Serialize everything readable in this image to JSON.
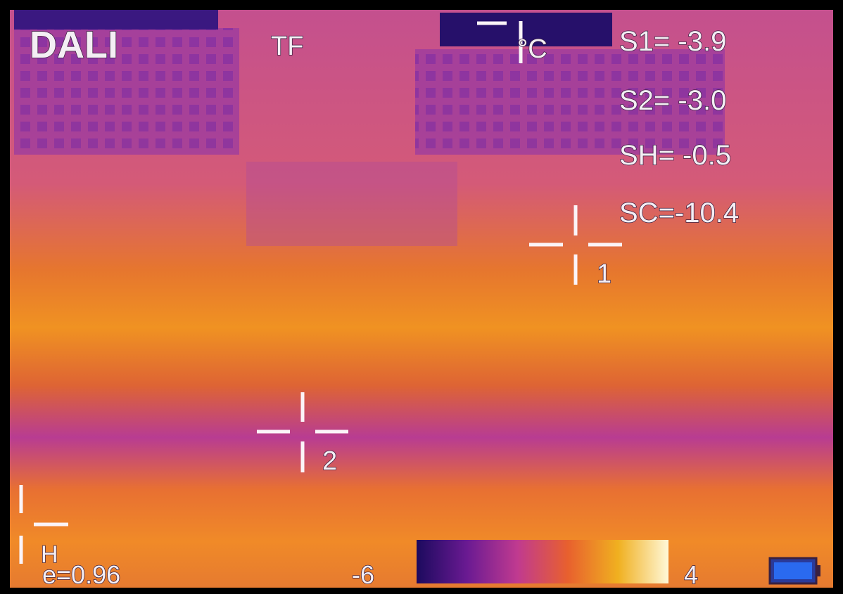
{
  "header": {
    "brand": "DALI",
    "mode": "TF",
    "unit": "°C"
  },
  "readings": [
    "S1= -3.9",
    "S2= -3.0",
    "SH= -0.5",
    "SC=-10.4"
  ],
  "markers": [
    "1",
    "2",
    "H"
  ],
  "footer": {
    "emissivity": "e=0.96",
    "scale_min": "-6",
    "scale_max": "4"
  }
}
